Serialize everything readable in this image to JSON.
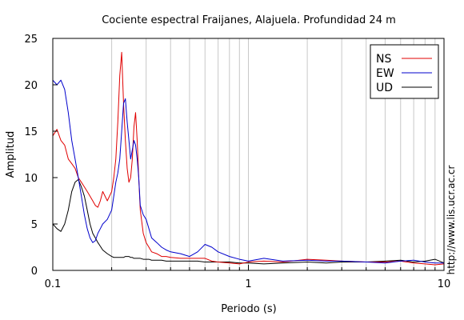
{
  "chart_data": {
    "type": "line",
    "title": "Cociente espectral Fraijanes, Alajuela. Profundidad 24 m",
    "xlabel": "Periodo (s)",
    "ylabel": "Amplitud",
    "xscale": "log",
    "xlim": [
      0.1,
      10
    ],
    "ylim": [
      0,
      25
    ],
    "xticks": [
      {
        "value": 0.1,
        "label": "0.1"
      },
      {
        "value": 1,
        "label": "1"
      },
      {
        "value": 10,
        "label": "10"
      }
    ],
    "yticks": [
      {
        "value": 0,
        "label": "0"
      },
      {
        "value": 5,
        "label": "5"
      },
      {
        "value": 10,
        "label": "10"
      },
      {
        "value": 15,
        "label": "15"
      },
      {
        "value": 20,
        "label": "20"
      },
      {
        "value": 25,
        "label": "25"
      }
    ],
    "grid": "vertical",
    "legend_position": "top-right",
    "credit": "http://www.lis.ucr.ac.cr",
    "series": [
      {
        "name": "NS",
        "color": "#e00000",
        "x": [
          0.1,
          0.105,
          0.11,
          0.115,
          0.12,
          0.125,
          0.13,
          0.135,
          0.14,
          0.145,
          0.15,
          0.155,
          0.16,
          0.165,
          0.17,
          0.175,
          0.18,
          0.19,
          0.2,
          0.205,
          0.21,
          0.215,
          0.22,
          0.225,
          0.23,
          0.235,
          0.24,
          0.245,
          0.25,
          0.255,
          0.26,
          0.265,
          0.27,
          0.275,
          0.28,
          0.29,
          0.3,
          0.31,
          0.32,
          0.34,
          0.36,
          0.38,
          0.4,
          0.45,
          0.5,
          0.55,
          0.6,
          0.65,
          0.7,
          0.8,
          0.9,
          1.0,
          1.2,
          1.5,
          2.0,
          2.5,
          3.0,
          4.0,
          5.0,
          6.0,
          7.0,
          8.0,
          9.0,
          10.0
        ],
        "y": [
          14.5,
          15.2,
          14.0,
          13.5,
          12.0,
          11.5,
          11.0,
          10.0,
          9.5,
          9.0,
          8.5,
          8.0,
          7.5,
          7.0,
          6.8,
          7.5,
          8.5,
          7.5,
          8.5,
          10.0,
          12.0,
          16.0,
          21.0,
          23.5,
          18.0,
          14.0,
          11.0,
          9.5,
          10.0,
          12.0,
          15.5,
          17.0,
          14.0,
          10.0,
          6.5,
          4.0,
          3.0,
          2.5,
          2.0,
          1.8,
          1.5,
          1.5,
          1.4,
          1.3,
          1.3,
          1.3,
          1.3,
          1.0,
          0.9,
          0.8,
          0.7,
          0.9,
          1.0,
          0.9,
          1.2,
          1.1,
          1.0,
          0.9,
          0.9,
          1.0,
          0.8,
          0.7,
          0.6,
          0.7
        ]
      },
      {
        "name": "EW",
        "color": "#0000cc",
        "x": [
          0.1,
          0.105,
          0.11,
          0.115,
          0.12,
          0.125,
          0.13,
          0.135,
          0.14,
          0.145,
          0.15,
          0.155,
          0.16,
          0.165,
          0.17,
          0.175,
          0.18,
          0.19,
          0.2,
          0.205,
          0.21,
          0.215,
          0.22,
          0.225,
          0.23,
          0.235,
          0.24,
          0.245,
          0.25,
          0.255,
          0.26,
          0.265,
          0.27,
          0.275,
          0.28,
          0.29,
          0.3,
          0.31,
          0.32,
          0.34,
          0.36,
          0.38,
          0.4,
          0.45,
          0.5,
          0.55,
          0.6,
          0.65,
          0.7,
          0.8,
          0.9,
          1.0,
          1.2,
          1.5,
          2.0,
          2.5,
          3.0,
          4.0,
          5.0,
          6.0,
          7.0,
          8.0,
          9.0,
          10.0
        ],
        "y": [
          20.5,
          20.0,
          20.5,
          19.5,
          17.0,
          14.0,
          12.0,
          10.0,
          8.0,
          6.0,
          4.5,
          3.5,
          3.0,
          3.2,
          4.0,
          4.5,
          5.0,
          5.5,
          6.5,
          8.0,
          9.5,
          10.5,
          12.0,
          15.0,
          18.0,
          18.5,
          16.0,
          14.0,
          12.0,
          13.0,
          14.0,
          13.5,
          12.0,
          10.0,
          7.0,
          6.0,
          5.5,
          4.5,
          3.5,
          3.0,
          2.5,
          2.2,
          2.0,
          1.8,
          1.5,
          2.0,
          2.8,
          2.5,
          2.0,
          1.5,
          1.2,
          1.0,
          1.3,
          1.0,
          1.1,
          1.0,
          1.0,
          0.9,
          0.8,
          1.0,
          1.1,
          0.9,
          0.8,
          0.8
        ]
      },
      {
        "name": "UD",
        "color": "#000000",
        "x": [
          0.1,
          0.105,
          0.11,
          0.115,
          0.12,
          0.125,
          0.13,
          0.135,
          0.14,
          0.145,
          0.15,
          0.155,
          0.16,
          0.165,
          0.17,
          0.175,
          0.18,
          0.19,
          0.2,
          0.205,
          0.21,
          0.215,
          0.22,
          0.225,
          0.23,
          0.235,
          0.24,
          0.245,
          0.25,
          0.255,
          0.26,
          0.265,
          0.27,
          0.275,
          0.28,
          0.29,
          0.3,
          0.31,
          0.32,
          0.34,
          0.36,
          0.38,
          0.4,
          0.45,
          0.5,
          0.55,
          0.6,
          0.65,
          0.7,
          0.8,
          0.9,
          1.0,
          1.2,
          1.5,
          2.0,
          2.5,
          3.0,
          4.0,
          5.0,
          6.0,
          7.0,
          8.0,
          9.0,
          10.0
        ],
        "y": [
          5.0,
          4.5,
          4.2,
          5.0,
          6.5,
          8.5,
          9.5,
          9.8,
          9.0,
          8.0,
          6.5,
          5.0,
          4.0,
          3.5,
          3.0,
          2.6,
          2.2,
          1.8,
          1.5,
          1.4,
          1.4,
          1.4,
          1.4,
          1.4,
          1.4,
          1.5,
          1.5,
          1.5,
          1.4,
          1.4,
          1.3,
          1.3,
          1.3,
          1.3,
          1.3,
          1.2,
          1.2,
          1.2,
          1.1,
          1.1,
          1.1,
          1.0,
          1.0,
          1.0,
          1.0,
          1.0,
          0.9,
          0.9,
          0.9,
          0.9,
          0.8,
          0.8,
          0.7,
          0.8,
          0.9,
          0.8,
          0.9,
          0.9,
          1.0,
          1.1,
          0.9,
          1.0,
          1.2,
          0.8
        ]
      }
    ]
  }
}
